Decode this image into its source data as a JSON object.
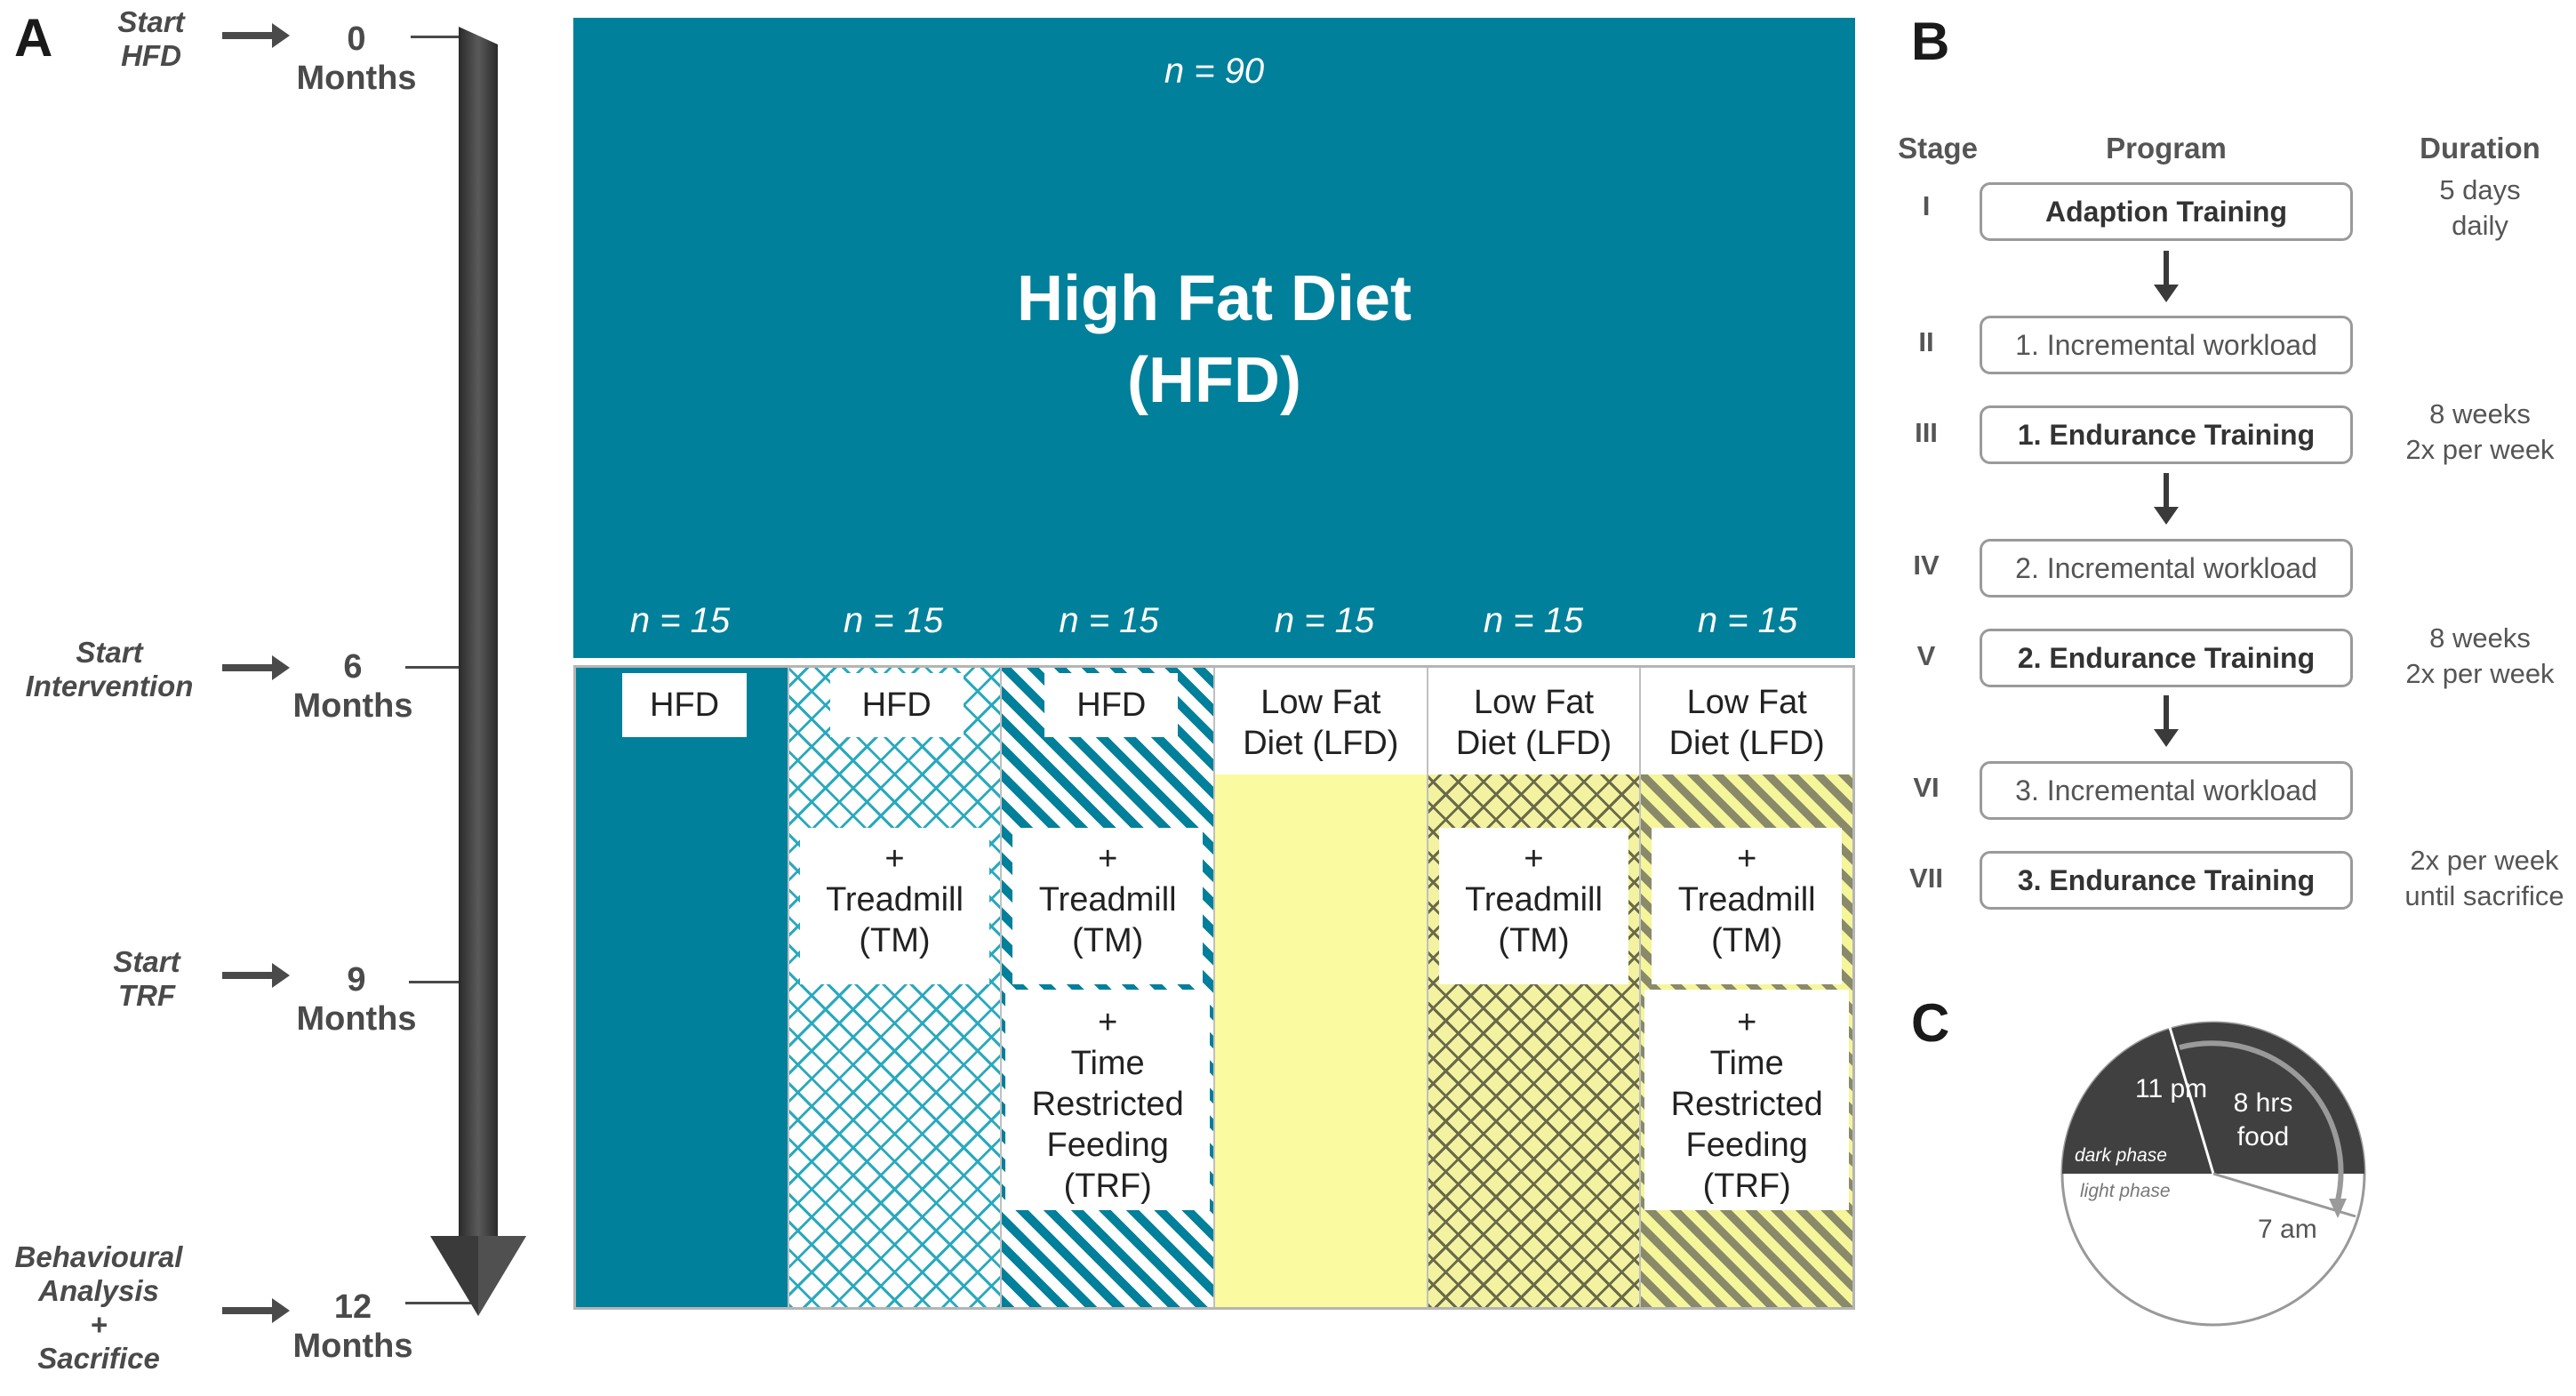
{
  "panel_a": {
    "letter": "A",
    "events": [
      {
        "label_lines": [
          "Start",
          "HFD"
        ],
        "month": "0",
        "unit": "Months"
      },
      {
        "label_lines": [
          "Start",
          "Intervention"
        ],
        "month": "6",
        "unit": "Months"
      },
      {
        "label_lines": [
          "Start",
          "TRF"
        ],
        "month": "9",
        "unit": "Months"
      },
      {
        "label_lines": [
          "Behavioural",
          "Analysis",
          "+",
          "Sacrifice"
        ],
        "month": "12",
        "unit": "Months"
      }
    ],
    "top_n": "n = 90",
    "title_line1": "High Fat Diet",
    "title_line2": "(HFD)",
    "groups": [
      {
        "n": "n = 15",
        "diet": "HFD",
        "tm": null,
        "trf": null
      },
      {
        "n": "n = 15",
        "diet": "HFD",
        "tm": [
          "+",
          "Treadmill",
          "(TM)"
        ],
        "trf": null
      },
      {
        "n": "n = 15",
        "diet": "HFD",
        "tm": [
          "+",
          "Treadmill",
          "(TM)"
        ],
        "trf": [
          "+",
          "Time",
          "Restricted",
          "Feeding",
          "(TRF)"
        ]
      },
      {
        "n": "n = 15",
        "diet": "Low Fat Diet (LFD)",
        "diet_lines": [
          "Low Fat",
          "Diet (LFD)"
        ],
        "tm": null,
        "trf": null
      },
      {
        "n": "n = 15",
        "diet_lines": [
          "Low Fat",
          "Diet (LFD)"
        ],
        "tm": [
          "+",
          "Treadmill",
          "(TM)"
        ],
        "trf": null
      },
      {
        "n": "n = 15",
        "diet_lines": [
          "Low Fat",
          "Diet (LFD)"
        ],
        "tm": [
          "+",
          "Treadmill",
          "(TM)"
        ],
        "trf": [
          "+",
          "Time",
          "Restricted",
          "Feeding",
          "(TRF)"
        ]
      }
    ],
    "colors": {
      "hfd": "#00809a",
      "lfd": "#fafaa0"
    }
  },
  "panel_b": {
    "letter": "B",
    "headers": {
      "stage": "Stage",
      "program": "Program",
      "duration": "Duration"
    },
    "rows": [
      {
        "stage": "I",
        "program": "Adaption Training",
        "bold": true,
        "duration": [
          "5 days",
          "daily"
        ]
      },
      {
        "stage": "II",
        "program": "1. Incremental workload",
        "bold": false,
        "duration": []
      },
      {
        "stage": "III",
        "program": "1. Endurance Training",
        "bold": true,
        "duration": [
          "8 weeks",
          "2x per week"
        ]
      },
      {
        "stage": "IV",
        "program": "2. Incremental workload",
        "bold": false,
        "duration": []
      },
      {
        "stage": "V",
        "program": "2. Endurance Training",
        "bold": true,
        "duration": [
          "8 weeks",
          "2x per week"
        ]
      },
      {
        "stage": "VI",
        "program": "3. Incremental workload",
        "bold": false,
        "duration": []
      },
      {
        "stage": "VII",
        "program": "3. Endurance Training",
        "bold": true,
        "duration": [
          "2x per week",
          "until sacrifice"
        ]
      }
    ]
  },
  "panel_c": {
    "letter": "C",
    "start_time": "11 pm",
    "food_line1": "8 hrs",
    "food_line2": "food",
    "dark_label": "dark phase",
    "light_label": "light phase",
    "end_time": "7 am"
  }
}
